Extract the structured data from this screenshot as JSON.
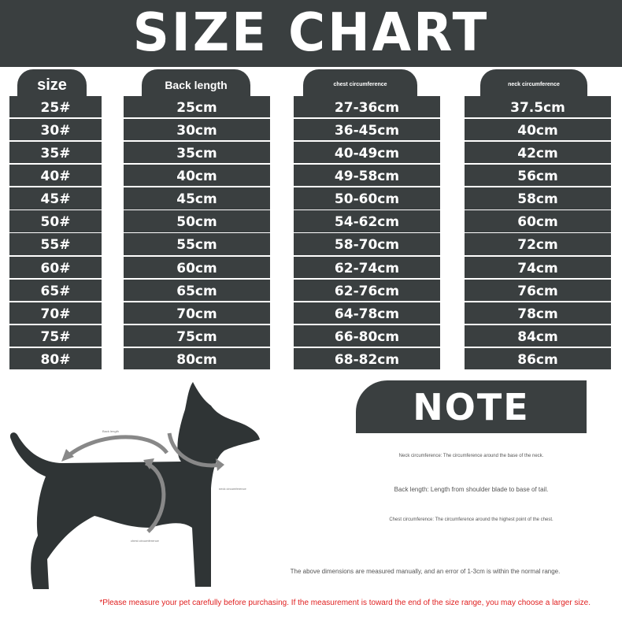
{
  "title": "SIZE CHART",
  "columns": [
    {
      "header": "size",
      "values": [
        "25#",
        "30#",
        "35#",
        "40#",
        "45#",
        "50#",
        "55#",
        "60#",
        "65#",
        "70#",
        "75#",
        "80#"
      ]
    },
    {
      "header": "Back length",
      "values": [
        "25cm",
        "30cm",
        "35cm",
        "40cm",
        "45cm",
        "50cm",
        "55cm",
        "60cm",
        "65cm",
        "70cm",
        "75cm",
        "80cm"
      ]
    },
    {
      "header": "chest circumference",
      "values": [
        "27-36cm",
        "36-45cm",
        "40-49cm",
        "49-58cm",
        "50-60cm",
        "54-62cm",
        "58-70cm",
        "62-74cm",
        "62-76cm",
        "64-78cm",
        "66-80cm",
        "68-82cm"
      ]
    },
    {
      "header": "neck circumference",
      "values": [
        "37.5cm",
        "40cm",
        "42cm",
        "56cm",
        "58cm",
        "60cm",
        "72cm",
        "74cm",
        "76cm",
        "78cm",
        "84cm",
        "86cm"
      ]
    }
  ],
  "diagram": {
    "back_label": "Back length",
    "neck_label": "neck circumference",
    "chest_label": "chest circumference"
  },
  "note": {
    "title": "NOTE",
    "neck": "Neck circumference: The circumference around the base of the neck.",
    "back": "Back length: Length from shoulder blade to base of tail.",
    "chest": "Chest circumference: The circumference around the highest point of the chest.",
    "error": "The above dimensions are measured manually, and an error of 1-3cm is within the normal range."
  },
  "warning": "*Please measure your pet carefully before purchasing. If the measurement is toward the end of the size range, you may choose a larger size.",
  "colors": {
    "panel": "#3a3f40",
    "warning": "#e02020",
    "arrow": "#888888"
  }
}
